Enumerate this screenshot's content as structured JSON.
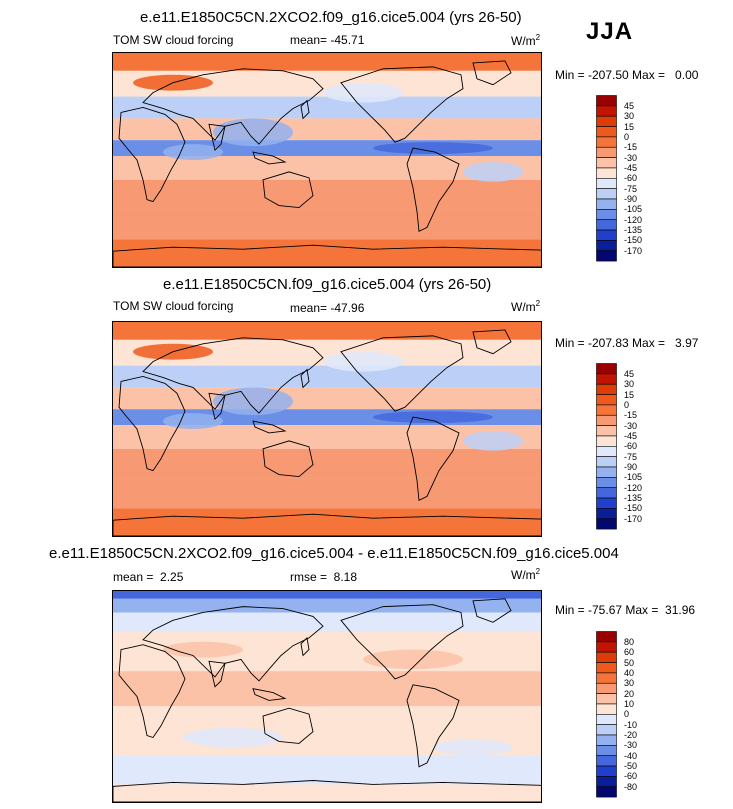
{
  "season": "JJA",
  "units_base": "W/m",
  "units_exp": "2",
  "panels": [
    {
      "title": "e.e11.E1850C5CN.2XCO2.f09_g16.cice5.004 (yrs 26-50)",
      "left_label": "TOM SW cloud forcing",
      "center_label": "mean= -45.71",
      "minmax": "Min = -207.50 Max =   0.00",
      "colorbar_levels": [
        "45",
        "30",
        "15",
        "0",
        "-15",
        "-30",
        "-45",
        "-60",
        "-75",
        "-90",
        "-105",
        "-120",
        "-135",
        "-150",
        "-170"
      ]
    },
    {
      "title": "e.e11.E1850C5CN.f09_g16.cice5.004 (yrs 26-50)",
      "left_label": "TOM SW cloud forcing",
      "center_label": "mean= -47.96",
      "minmax": "Min = -207.83 Max =   3.97",
      "colorbar_levels": [
        "45",
        "30",
        "15",
        "0",
        "-15",
        "-30",
        "-45",
        "-60",
        "-75",
        "-90",
        "-105",
        "-120",
        "-135",
        "-150",
        "-170"
      ]
    },
    {
      "title": "e.e11.E1850C5CN.2XCO2.f09_g16.cice5.004 - e.e11.E1850C5CN.f09_g16.cice5.004",
      "left_label": "mean =  2.25",
      "center_label": "rmse =  8.18",
      "minmax": "Min = -75.67 Max =  31.96",
      "colorbar_levels": [
        "80",
        "60",
        "50",
        "40",
        "30",
        "20",
        "10",
        "0",
        "-10",
        "-20",
        "-30",
        "-40",
        "-50",
        "-60",
        "-80"
      ]
    }
  ],
  "chart_data": [
    {
      "type": "heatmap",
      "title": "e.e11.E1850C5CN.2XCO2.f09_g16.cice5.004 (yrs 26-50)",
      "variable": "TOM SW cloud forcing",
      "units": "W/m2",
      "mean": -45.71,
      "min": -207.5,
      "max": 0.0,
      "levels": [
        45,
        30,
        15,
        0,
        -15,
        -30,
        -45,
        -60,
        -75,
        -90,
        -105,
        -120,
        -135,
        -150,
        -170
      ]
    },
    {
      "type": "heatmap",
      "title": "e.e11.E1850C5CN.f09_g16.cice5.004 (yrs 26-50)",
      "variable": "TOM SW cloud forcing",
      "units": "W/m2",
      "mean": -47.96,
      "min": -207.83,
      "max": 3.97,
      "levels": [
        45,
        30,
        15,
        0,
        -15,
        -30,
        -45,
        -60,
        -75,
        -90,
        -105,
        -120,
        -135,
        -150,
        -170
      ]
    },
    {
      "type": "heatmap",
      "title": "e.e11.E1850C5CN.2XCO2.f09_g16.cice5.004 - e.e11.E1850C5CN.f09_g16.cice5.004",
      "units": "W/m2",
      "mean": 2.25,
      "rmse": 8.18,
      "min": -75.67,
      "max": 31.96,
      "levels": [
        80,
        60,
        50,
        40,
        30,
        20,
        10,
        0,
        -10,
        -20,
        -30,
        -40,
        -50,
        -60,
        -80
      ]
    }
  ],
  "colors": {
    "ctrl_scale": [
      "#9b0000",
      "#c21400",
      "#dd3c06",
      "#ee5a1b",
      "#f4743a",
      "#f79a73",
      "#fbc2a8",
      "#fde4d4",
      "#dfe9fb",
      "#bcd0f7",
      "#93b2ef",
      "#6b8fe7",
      "#4468dc",
      "#1f3fcc",
      "#0b1e9a",
      "#040770"
    ],
    "diff_scale": [
      "#9b0000",
      "#c21400",
      "#dd3c06",
      "#ee5a1b",
      "#f4743a",
      "#f79a73",
      "#fbc2a8",
      "#fde4d4",
      "#dfe9fb",
      "#bcd0f7",
      "#93b2ef",
      "#6b8fe7",
      "#4468dc",
      "#1f3fcc",
      "#0b1e9a",
      "#040770"
    ],
    "coast": "#000000"
  }
}
